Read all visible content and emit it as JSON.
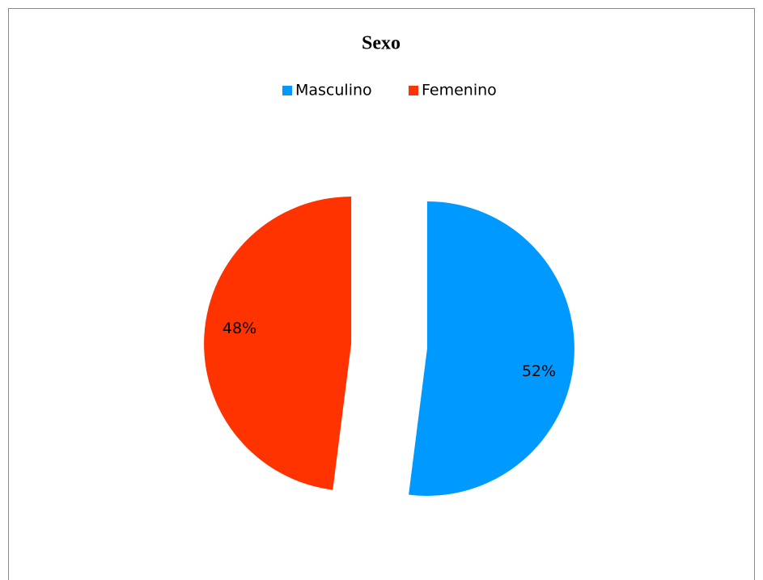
{
  "chart_data": {
    "type": "pie",
    "title": "Sexo",
    "categories": [
      "Masculino",
      "Femenino"
    ],
    "values": [
      52,
      48
    ],
    "value_labels": [
      "52%",
      "48%"
    ],
    "colors": [
      "#0099ff",
      "#ff3300"
    ],
    "legend": "top"
  }
}
